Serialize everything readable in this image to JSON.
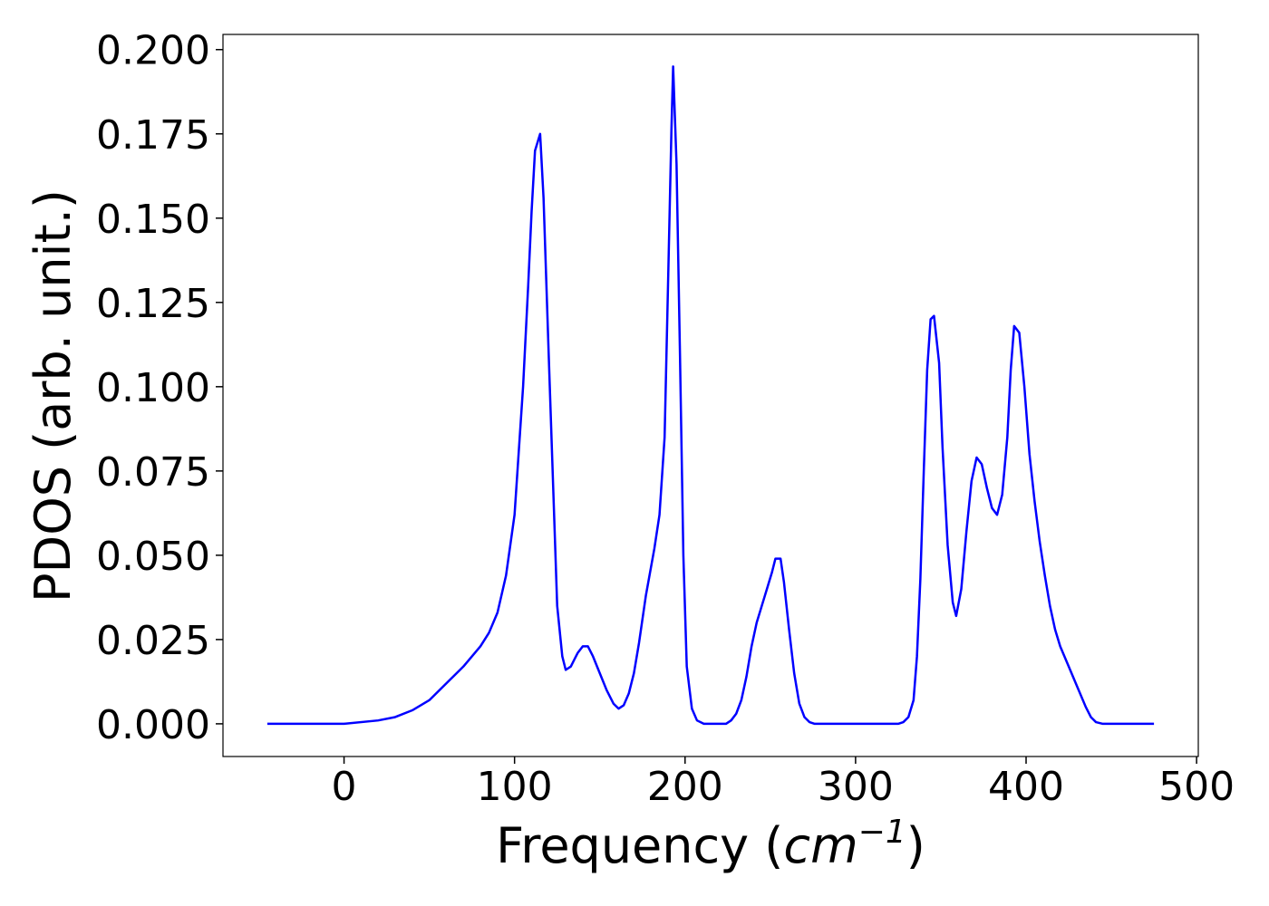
{
  "chart_data": {
    "type": "line",
    "xlabel": [
      "Frequency (",
      "cm",
      "−1",
      ")"
    ],
    "ylabel": "PDOS (arb. unit.)",
    "xlim": [
      -71,
      501
    ],
    "ylim": [
      -0.0097,
      0.2045
    ],
    "xticks": [
      0,
      100,
      200,
      300,
      400,
      500
    ],
    "yticks": [
      {
        "value": 0,
        "label": "0.000"
      },
      {
        "value": 0.025,
        "label": "0.025"
      },
      {
        "value": 0.05,
        "label": "0.050"
      },
      {
        "value": 0.075,
        "label": "0.075"
      },
      {
        "value": 0.1,
        "label": "0.100"
      },
      {
        "value": 0.125,
        "label": "0.125"
      },
      {
        "value": 0.15,
        "label": "0.150"
      },
      {
        "value": 0.175,
        "label": "0.175"
      },
      {
        "value": 0.2,
        "label": "0.200"
      }
    ],
    "grid": false,
    "x": [
      -45,
      0,
      20,
      30,
      40,
      50,
      60,
      70,
      80,
      85,
      90,
      95,
      100,
      105,
      108,
      110,
      112,
      115,
      117,
      120,
      123,
      125,
      128,
      130,
      133,
      137,
      140,
      143,
      146,
      150,
      154,
      158,
      161,
      164,
      167,
      170,
      173,
      177,
      182,
      185,
      188,
      190,
      192,
      193,
      195,
      197,
      199,
      201,
      204,
      207,
      211,
      224,
      227,
      230,
      233,
      236,
      239,
      242,
      245,
      248,
      251,
      253,
      256,
      258,
      261,
      264,
      267,
      270,
      273,
      276,
      325,
      328,
      331,
      334,
      336,
      338,
      340,
      342,
      344,
      346,
      349,
      351,
      354,
      357,
      359,
      362,
      365,
      368,
      371,
      374,
      377,
      380,
      383,
      386,
      389,
      391,
      393,
      396,
      399,
      402,
      405,
      408,
      411,
      414,
      417,
      420,
      425,
      430,
      435,
      438,
      441,
      445,
      475
    ],
    "series": [
      {
        "name": "PDOS",
        "color": "#0000ff",
        "values": [
          0,
          0,
          0.001,
          0.002,
          0.004,
          0.007,
          0.012,
          0.017,
          0.023,
          0.027,
          0.033,
          0.044,
          0.062,
          0.1,
          0.13,
          0.152,
          0.17,
          0.175,
          0.156,
          0.11,
          0.065,
          0.035,
          0.02,
          0.016,
          0.017,
          0.021,
          0.023,
          0.023,
          0.02,
          0.015,
          0.01,
          0.006,
          0.0045,
          0.0055,
          0.009,
          0.015,
          0.024,
          0.038,
          0.052,
          0.062,
          0.085,
          0.13,
          0.176,
          0.195,
          0.166,
          0.11,
          0.05,
          0.017,
          0.0045,
          0.001,
          0,
          0,
          0.001,
          0.003,
          0.007,
          0.014,
          0.023,
          0.03,
          0.035,
          0.04,
          0.045,
          0.049,
          0.049,
          0.042,
          0.028,
          0.015,
          0.006,
          0.002,
          0.0005,
          0,
          0,
          0.0005,
          0.002,
          0.007,
          0.02,
          0.043,
          0.075,
          0.105,
          0.12,
          0.121,
          0.107,
          0.082,
          0.053,
          0.036,
          0.032,
          0.04,
          0.057,
          0.072,
          0.079,
          0.077,
          0.07,
          0.064,
          0.062,
          0.068,
          0.085,
          0.105,
          0.118,
          0.116,
          0.1,
          0.08,
          0.066,
          0.054,
          0.044,
          0.035,
          0.028,
          0.023,
          0.017,
          0.011,
          0.005,
          0.002,
          0.0005,
          0,
          0
        ]
      }
    ]
  }
}
